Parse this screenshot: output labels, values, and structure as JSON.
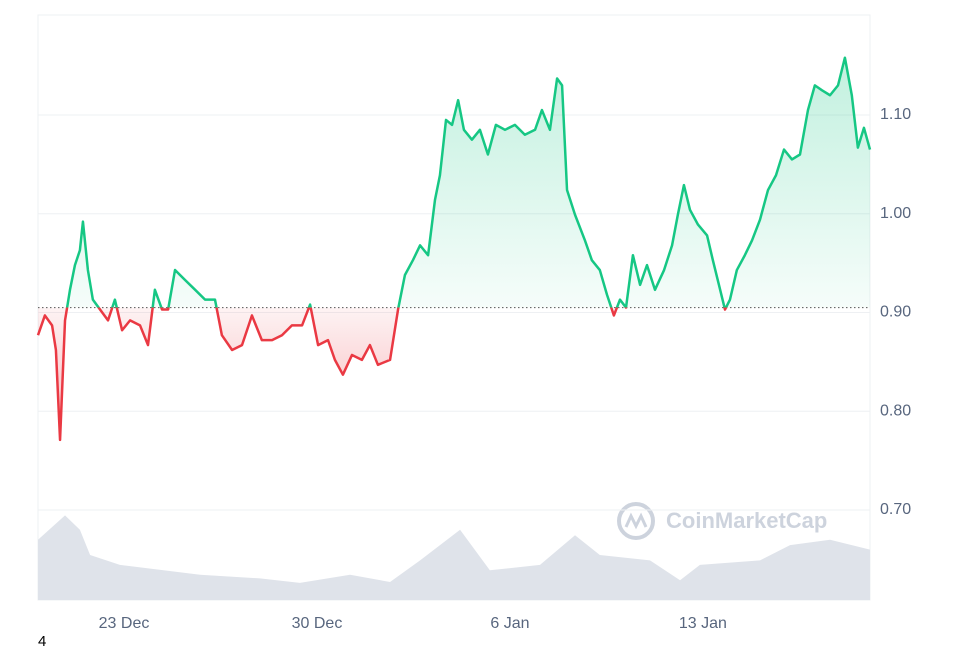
{
  "chart_data": {
    "type": "line",
    "x": [
      0,
      0.25,
      0.51,
      0.65,
      0.8,
      0.98,
      1.16,
      1.34,
      1.52,
      1.63,
      1.81,
      1.99,
      2.25,
      2.54,
      2.79,
      3.05,
      3.34,
      3.7,
      3.99,
      4.24,
      4.5,
      4.72,
      4.97,
      5.33,
      5.7,
      6.06,
      6.42,
      6.67,
      7.04,
      7.4,
      7.76,
      8.12,
      8.49,
      8.85,
      9.21,
      9.58,
      9.87,
      10.16,
      10.52,
      10.77,
      11.06,
      11.39,
      11.75,
      12.04,
      12.33,
      12.77,
      13.06,
      13.31,
      13.6,
      13.86,
      14.15,
      14.4,
      14.58,
      14.8,
      15.02,
      15.24,
      15.45,
      15.74,
      16.03,
      16.32,
      16.61,
      16.94,
      17.3,
      17.66,
      18.03,
      18.28,
      18.57,
      18.83,
      19.01,
      19.19,
      19.48,
      19.84,
      20.09,
      20.38,
      20.64,
      20.89,
      21.11,
      21.33,
      21.58,
      21.84,
      22.09,
      22.38,
      22.71,
      23.0,
      23.21,
      23.43,
      23.65,
      23.94,
      24.27,
      24.48,
      24.7,
      24.92,
      25.1,
      25.35,
      25.64,
      25.9,
      26.19,
      26.48,
      26.77,
      27.06,
      27.35,
      27.64,
      27.93,
      28.18,
      28.44,
      28.73,
      29.02,
      29.27,
      29.52,
      29.74,
      29.96,
      30.18
    ],
    "values": [
      0.877,
      0.897,
      0.887,
      0.862,
      0.771,
      0.892,
      0.923,
      0.948,
      0.963,
      0.992,
      0.943,
      0.913,
      0.903,
      0.892,
      0.913,
      0.882,
      0.892,
      0.887,
      0.867,
      0.923,
      0.903,
      0.903,
      0.943,
      0.933,
      0.923,
      0.913,
      0.913,
      0.877,
      0.862,
      0.867,
      0.897,
      0.872,
      0.872,
      0.877,
      0.887,
      0.887,
      0.908,
      0.867,
      0.872,
      0.852,
      0.837,
      0.857,
      0.852,
      0.867,
      0.847,
      0.852,
      0.903,
      0.938,
      0.953,
      0.968,
      0.958,
      1.014,
      1.039,
      1.095,
      1.09,
      1.115,
      1.085,
      1.075,
      1.085,
      1.06,
      1.09,
      1.085,
      1.09,
      1.08,
      1.085,
      1.105,
      1.085,
      1.137,
      1.13,
      1.024,
      0.999,
      0.973,
      0.953,
      0.943,
      0.918,
      0.897,
      0.913,
      0.905,
      0.958,
      0.928,
      0.948,
      0.923,
      0.943,
      0.968,
      0.999,
      1.029,
      1.004,
      0.989,
      0.978,
      0.953,
      0.928,
      0.903,
      0.913,
      0.943,
      0.958,
      0.973,
      0.994,
      1.024,
      1.039,
      1.065,
      1.055,
      1.06,
      1.105,
      1.13,
      1.125,
      1.12,
      1.13,
      1.158,
      1.12,
      1.067,
      1.087,
      1.065
    ],
    "baseline": 0.905,
    "up_color": "#16c784",
    "down_color": "#ea3943",
    "volume": {
      "x": [
        0,
        0.8,
        0.98,
        1.52,
        1.89,
        2.97,
        5.88,
        8.05,
        9.5,
        11.32,
        12.77,
        13.86,
        15.31,
        16.39,
        18.21,
        19.48,
        20.38,
        22.2,
        23.29,
        24.01,
        26.19,
        27.28,
        28.73,
        30.18
      ],
      "values": [
        67,
        89,
        94,
        78,
        50,
        39,
        28,
        24,
        19,
        28,
        20,
        44,
        78,
        33,
        39,
        72,
        50,
        44,
        22,
        39,
        44,
        61,
        67,
        56
      ],
      "ylim": [
        0,
        100
      ],
      "color": "#dfe3ea"
    },
    "xlim": [
      0,
      30.18
    ],
    "xticks": [
      {
        "value": 3.12,
        "label": "23 Dec"
      },
      {
        "value": 10.12,
        "label": "30 Dec"
      },
      {
        "value": 17.12,
        "label": "6 Jan"
      },
      {
        "value": 24.12,
        "label": "13 Jan"
      }
    ],
    "ylim": [
      0.7,
      1.2
    ],
    "yticks": [
      {
        "value": 0.7,
        "label": "0.70"
      },
      {
        "value": 0.8,
        "label": "0.80"
      },
      {
        "value": 0.9,
        "label": "0.90"
      },
      {
        "value": 1.0,
        "label": "1.00"
      },
      {
        "value": 1.1,
        "label": "1.10"
      }
    ],
    "grid": true,
    "watermark": "CoinMarketCap"
  },
  "footnote": "4"
}
